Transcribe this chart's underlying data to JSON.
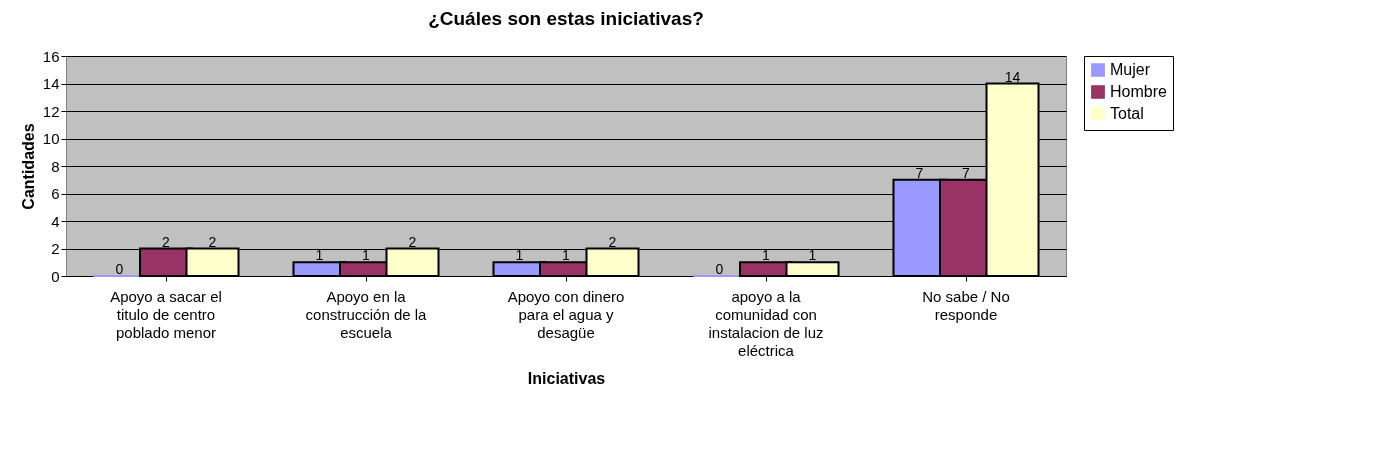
{
  "chart_data": {
    "type": "bar",
    "title": "¿Cuáles son estas iniciativas?",
    "xlabel": "Iniciativas",
    "ylabel": "Cantidades",
    "categories": [
      "Apoyo a sacar el titulo de centro poblado menor",
      "Apoyo en la construcción de la escuela",
      "Apoyo con dinero para el agua y desagüe",
      "apoyo a la comunidad con instalacion de luz eléctrica",
      "No sabe / No responde"
    ],
    "series": [
      {
        "name": "Mujer",
        "color": "#9999ff",
        "values": [
          0,
          1,
          1,
          0,
          7
        ]
      },
      {
        "name": "Hombre",
        "color": "#993366",
        "values": [
          2,
          1,
          1,
          1,
          7
        ]
      },
      {
        "name": "Total",
        "color": "#ffffcc",
        "values": [
          2,
          2,
          2,
          1,
          14
        ]
      }
    ],
    "ylim": [
      0,
      16
    ],
    "yticks": [
      0,
      2,
      4,
      6,
      8,
      10,
      12,
      14,
      16
    ],
    "grid": "y",
    "legend": "right",
    "data_labels": true
  }
}
